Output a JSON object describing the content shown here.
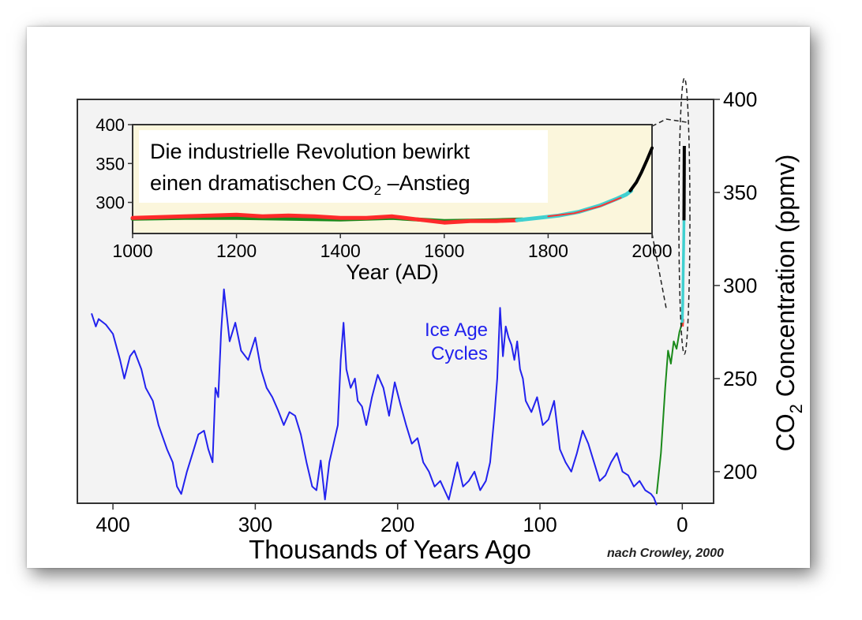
{
  "chart_data": [
    {
      "type": "line",
      "xlabel": "Thousands of Years Ago",
      "ylabel": "CO2 Concentration (ppmv)",
      "ylabel_main": "CO",
      "ylabel_sub": "2",
      "ylabel_rest": " Concentration (ppmv)",
      "xlim": [
        425,
        -22
      ],
      "ylim": [
        183,
        400
      ],
      "xticks": [
        400,
        300,
        200,
        100,
        0
      ],
      "yticks": [
        400,
        350,
        300,
        250,
        200
      ],
      "annotation": "Ice Age Cycles",
      "annotation_line1": "Ice Age",
      "annotation_line2": "Cycles",
      "credit": "nach Crowley, 2000",
      "series": [
        {
          "color": "#2222ee",
          "x": [
            415,
            412,
            410,
            405,
            400,
            395,
            392,
            388,
            385,
            380,
            377,
            372,
            368,
            362,
            358,
            355,
            352,
            348,
            344,
            340,
            336,
            333,
            330,
            328,
            326,
            324,
            322,
            318,
            314,
            310,
            305,
            300,
            296,
            292,
            288,
            284,
            280,
            276,
            272,
            268,
            264,
            260,
            257,
            254,
            251,
            248,
            245,
            242,
            240,
            238,
            236,
            233,
            230,
            228,
            225,
            222,
            218,
            214,
            210,
            206,
            202,
            198,
            194,
            190,
            186,
            182,
            178,
            174,
            170,
            167,
            164,
            161,
            158,
            154,
            150,
            146,
            142,
            138,
            135,
            132,
            130,
            128,
            126,
            124,
            122,
            120,
            118,
            116,
            114,
            112,
            110,
            106,
            102,
            98,
            94,
            90,
            86,
            82,
            78,
            74,
            70,
            66,
            62,
            58,
            54,
            50,
            46,
            42,
            38,
            34,
            30,
            26,
            22,
            20,
            18
          ],
          "y": [
            285,
            278,
            282,
            279,
            274,
            260,
            250,
            262,
            265,
            255,
            245,
            238,
            225,
            212,
            205,
            192,
            188,
            200,
            210,
            220,
            222,
            212,
            205,
            245,
            240,
            275,
            298,
            270,
            280,
            265,
            260,
            272,
            255,
            245,
            240,
            233,
            225,
            232,
            230,
            220,
            205,
            192,
            190,
            206,
            185,
            205,
            215,
            225,
            260,
            280,
            255,
            245,
            250,
            238,
            235,
            225,
            240,
            252,
            245,
            230,
            248,
            236,
            225,
            215,
            218,
            205,
            200,
            192,
            195,
            190,
            185,
            195,
            205,
            192,
            195,
            200,
            190,
            195,
            205,
            230,
            250,
            288,
            262,
            278,
            272,
            268,
            260,
            270,
            255,
            250,
            238,
            232,
            240,
            225,
            228,
            238,
            212,
            205,
            200,
            210,
            222,
            215,
            205,
            195,
            198,
            205,
            210,
            200,
            198,
            192,
            195,
            190,
            188,
            186,
            182
          ]
        },
        {
          "color": "#1a8a1a",
          "x": [
            18,
            15,
            12,
            10,
            8,
            6,
            4,
            2,
            0
          ],
          "y": [
            188,
            210,
            245,
            265,
            258,
            270,
            266,
            275,
            280
          ]
        },
        {
          "color": "#ff3333",
          "x": [
            -0.4,
            -0.8
          ],
          "y": [
            278,
            282
          ]
        },
        {
          "color": "#40d0d0",
          "x": [
            0.1,
            -0.3,
            -0.6,
            -0.9,
            -1.2
          ],
          "y": [
            280,
            290,
            305,
            320,
            335
          ]
        },
        {
          "color": "#000000",
          "x": [
            -1.2,
            -1.3,
            -1.4
          ],
          "y": [
            335,
            355,
            375
          ]
        }
      ]
    },
    {
      "type": "line",
      "xlabel": "Year (AD)",
      "ylabel": "",
      "xlim": [
        1000,
        2000
      ],
      "ylim": [
        260,
        400
      ],
      "xticks": [
        1000,
        1200,
        1400,
        1600,
        1800,
        2000
      ],
      "yticks": [
        400,
        350,
        300
      ],
      "annotation_line1": "Die industrielle Revolution bewirkt",
      "annotation_line2_pre": "einen dramatischen CO",
      "annotation_line2_sub": "2",
      "annotation_line2_post": " –Anstieg",
      "series": [
        {
          "color": "#1a8a1a",
          "x": [
            1000,
            1100,
            1200,
            1300,
            1400,
            1500,
            1600,
            1700,
            1750
          ],
          "y": [
            279,
            280,
            280,
            279,
            278,
            280,
            276,
            277,
            278
          ]
        },
        {
          "color": "#ff2a2a",
          "x": [
            1000,
            1050,
            1100,
            1150,
            1200,
            1250,
            1300,
            1350,
            1400,
            1450,
            1500,
            1550,
            1600,
            1650,
            1700,
            1740
          ],
          "y": [
            280,
            281,
            282,
            283,
            284,
            282,
            283,
            282,
            280,
            280,
            282,
            278,
            274,
            276,
            276,
            277
          ]
        },
        {
          "color": "#40d0d0",
          "x": [
            1740,
            1780,
            1820,
            1860,
            1900,
            1930,
            1950,
            1960
          ],
          "y": [
            277,
            280,
            283,
            288,
            296,
            304,
            310,
            315
          ]
        },
        {
          "color": "#ff3333",
          "x": [
            1800,
            1850,
            1900,
            1940
          ],
          "y": [
            282,
            286,
            295,
            306
          ]
        },
        {
          "color": "#000000",
          "x": [
            1958,
            1970,
            1980,
            1990,
            2000
          ],
          "y": [
            315,
            326,
            339,
            354,
            370
          ]
        }
      ]
    }
  ]
}
